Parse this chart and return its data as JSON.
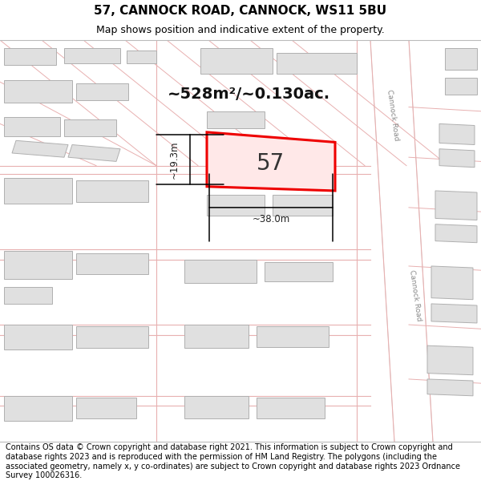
{
  "title": "57, CANNOCK ROAD, CANNOCK, WS11 5BU",
  "subtitle": "Map shows position and indicative extent of the property.",
  "footer": "Contains OS data © Crown copyright and database right 2021. This information is subject to Crown copyright and database rights 2023 and is reproduced with the permission of HM Land Registry. The polygons (including the associated geometry, namely x, y co-ordinates) are subject to Crown copyright and database rights 2023 Ordnance Survey 100026316.",
  "area_text": "~528m²/~0.130ac.",
  "label_57": "57",
  "dim_width": "~38.0m",
  "dim_height": "~19.3m",
  "road_label": "Cannock Road",
  "map_bg": "#f7f3f3",
  "road_fill": "#f0eaea",
  "building_fill": "#e0e0e0",
  "building_edge": "#b0b0b0",
  "highlight_fill": "#ffe8e8",
  "highlight_edge": "#ee0000",
  "line_color": "#e8b0b0",
  "road_line_color": "#c8b0b0",
  "title_fontsize": 11,
  "subtitle_fontsize": 9,
  "footer_fontsize": 7.0
}
